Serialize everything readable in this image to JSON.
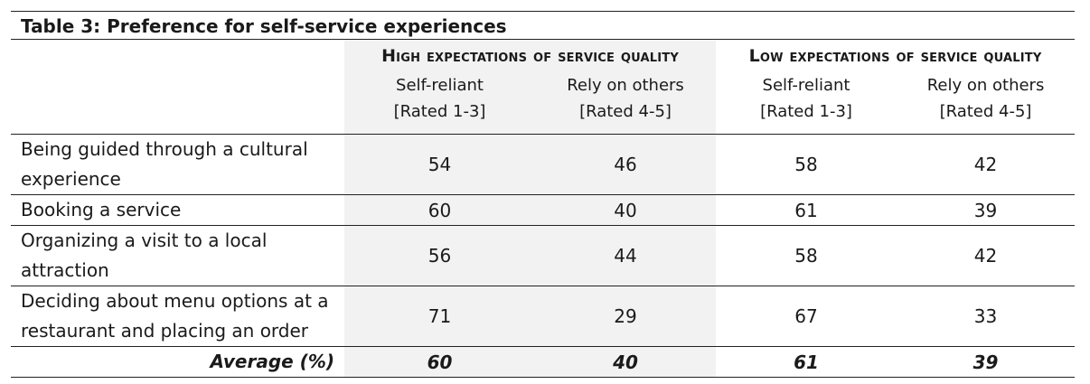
{
  "title": "Table 3: Preference for self-service experiences",
  "groups": [
    "High expectations of service quality",
    "Low expectations of service quality"
  ],
  "subheaders": [
    {
      "line1": "Self-reliant",
      "line2": "[Rated 1-3]"
    },
    {
      "line1": "Rely on others",
      "line2": "[Rated 4-5]"
    },
    {
      "line1": "Self-reliant",
      "line2": "[Rated 1-3]"
    },
    {
      "line1": "Rely on others",
      "line2": "[Rated 4-5]"
    }
  ],
  "rows": [
    {
      "label": "Being guided through a cultural experience",
      "values": [
        "54",
        "46",
        "58",
        "42"
      ]
    },
    {
      "label": "Booking a service",
      "values": [
        "60",
        "40",
        "61",
        "39"
      ]
    },
    {
      "label": "Organizing a visit to a local attraction",
      "values": [
        "56",
        "44",
        "58",
        "42"
      ]
    },
    {
      "label": "Deciding about menu options at a restaurant and placing an order",
      "values": [
        "71",
        "29",
        "67",
        "33"
      ]
    }
  ],
  "average": {
    "label": "Average (%)",
    "values": [
      "60",
      "40",
      "61",
      "39"
    ]
  }
}
